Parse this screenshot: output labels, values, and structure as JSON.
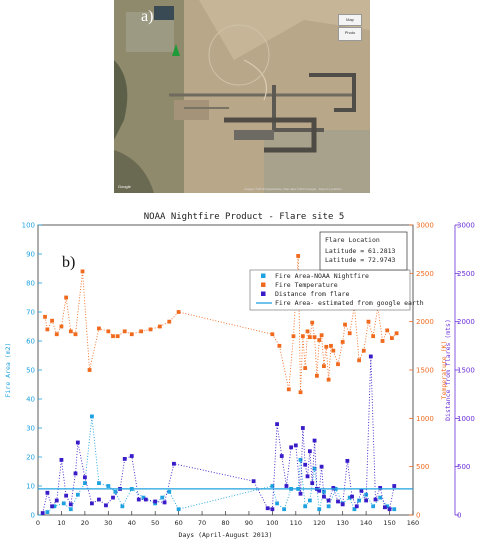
{
  "panel_a": {
    "label": "a)",
    "controls": {
      "map": "Map",
      "photo": "Photo"
    },
    "attribution": "Imagery ©2013 DigitalGlobe, Map data ©2013 Google · Report a problem"
  },
  "chart_data": {
    "type": "scatter",
    "title": "NOAA Nightfire Product - Flare site 5",
    "panel_label": "b)",
    "xlabel": "Days (April-August 2013)",
    "xlim": [
      0,
      160
    ],
    "xticks": [
      0,
      10,
      20,
      30,
      40,
      50,
      60,
      70,
      80,
      90,
      100,
      110,
      120,
      130,
      140,
      150,
      160
    ],
    "axes": {
      "left": {
        "label": "Fire Area (m2)",
        "range": [
          0,
          100
        ],
        "ticks": [
          0,
          10,
          20,
          30,
          40,
          50,
          60,
          70,
          80,
          90,
          100
        ],
        "color": "#1fa2e0"
      },
      "right1": {
        "label": "Temperature (K)",
        "range": [
          0,
          3000
        ],
        "ticks": [
          0,
          500,
          1000,
          1500,
          2000,
          2500,
          3000
        ],
        "color": "#f06a1e"
      },
      "right2": {
        "label": "Distance from flares (mts)",
        "range": [
          0,
          3000
        ],
        "ticks": [
          0,
          500,
          1000,
          1500,
          2000,
          2500,
          3000
        ],
        "color": "#6a2ed8"
      }
    },
    "annotation": {
      "title": "Flare Location",
      "lines": [
        "Latitude = 61.2813",
        "Latitude = 72.9743"
      ]
    },
    "legend": {
      "position": "top-right",
      "entries": [
        "Fire Area-NOAA Nightfire",
        "Fire Temperature",
        "Distance from flare",
        "Fire Area- estimated from google earth"
      ]
    },
    "series": [
      {
        "name": "Fire Area-NOAA Nightfire",
        "axis": "left",
        "color": "#1fa2e0",
        "style": "dotted-square",
        "x": [
          4,
          7,
          11,
          14,
          17,
          20,
          23,
          26,
          30,
          33,
          36,
          40,
          45,
          50,
          53,
          56,
          60,
          100,
          102,
          105,
          108,
          111,
          112,
          114,
          116,
          118,
          120,
          122,
          124,
          127,
          130,
          133,
          135,
          137,
          140,
          143,
          146,
          149,
          152
        ],
        "values": [
          1,
          3,
          4,
          2,
          7,
          11,
          34,
          11,
          10,
          8,
          3,
          9,
          6,
          4,
          6,
          8,
          2,
          10,
          4,
          2,
          9,
          9,
          19,
          3,
          5,
          16,
          2,
          8,
          3,
          9,
          4,
          6,
          2,
          5,
          7,
          3,
          6,
          3,
          2
        ]
      },
      {
        "name": "Fire Temperature",
        "axis": "right1",
        "color": "#f06a1e",
        "style": "dotted-square",
        "x": [
          3,
          4,
          6,
          8,
          10,
          12,
          14,
          16,
          19,
          22,
          26,
          30,
          32,
          34,
          37,
          40,
          44,
          48,
          52,
          56,
          60,
          100,
          103,
          107,
          109,
          111,
          112,
          113,
          114,
          115,
          116,
          117,
          118,
          119,
          120,
          121,
          122,
          123,
          124,
          125,
          126,
          128,
          130,
          131,
          133,
          135,
          137,
          139,
          141,
          143,
          145,
          147,
          149,
          151,
          153
        ],
        "values": [
          2050,
          1920,
          2010,
          1870,
          1950,
          2250,
          1900,
          1870,
          2520,
          1500,
          1930,
          1900,
          1850,
          1850,
          1900,
          1870,
          1900,
          1920,
          1950,
          2000,
          2100,
          1870,
          1750,
          1300,
          1850,
          2680,
          1270,
          1850,
          1520,
          1900,
          1840,
          1990,
          1840,
          1440,
          1810,
          1860,
          1540,
          1740,
          1400,
          1750,
          1700,
          1560,
          1790,
          1970,
          1880,
          2160,
          1600,
          1700,
          2000,
          1850,
          2150,
          1800,
          1910,
          1830,
          1880
        ]
      },
      {
        "name": "Distance from flare",
        "axis": "right2",
        "color": "#3a1bc8",
        "style": "dotted-square",
        "x": [
          2,
          4,
          6,
          8,
          10,
          12,
          14,
          16,
          17,
          20,
          23,
          26,
          29,
          32,
          35,
          37,
          40,
          43,
          46,
          50,
          54,
          58,
          92,
          98,
          100,
          102,
          104,
          106,
          108,
          110,
          112,
          113,
          114,
          115,
          116,
          117,
          118,
          119,
          120,
          121,
          122,
          124,
          126,
          128,
          130,
          132,
          134,
          136,
          138,
          140,
          142,
          144,
          146,
          148,
          150,
          152
        ],
        "values": [
          20,
          230,
          90,
          150,
          570,
          200,
          110,
          430,
          750,
          390,
          120,
          160,
          100,
          180,
          270,
          580,
          610,
          160,
          160,
          140,
          130,
          530,
          350,
          70,
          60,
          940,
          610,
          300,
          700,
          720,
          220,
          900,
          520,
          400,
          660,
          330,
          770,
          270,
          250,
          500,
          190,
          150,
          280,
          140,
          110,
          560,
          190,
          90,
          250,
          150,
          1640,
          160,
          280,
          80,
          60,
          300
        ]
      },
      {
        "name": "Fire Area- estimated from google earth",
        "axis": "left",
        "color": "#1fa2e0",
        "style": "line",
        "x": [
          0,
          160
        ],
        "values": [
          9,
          9
        ]
      }
    ]
  }
}
